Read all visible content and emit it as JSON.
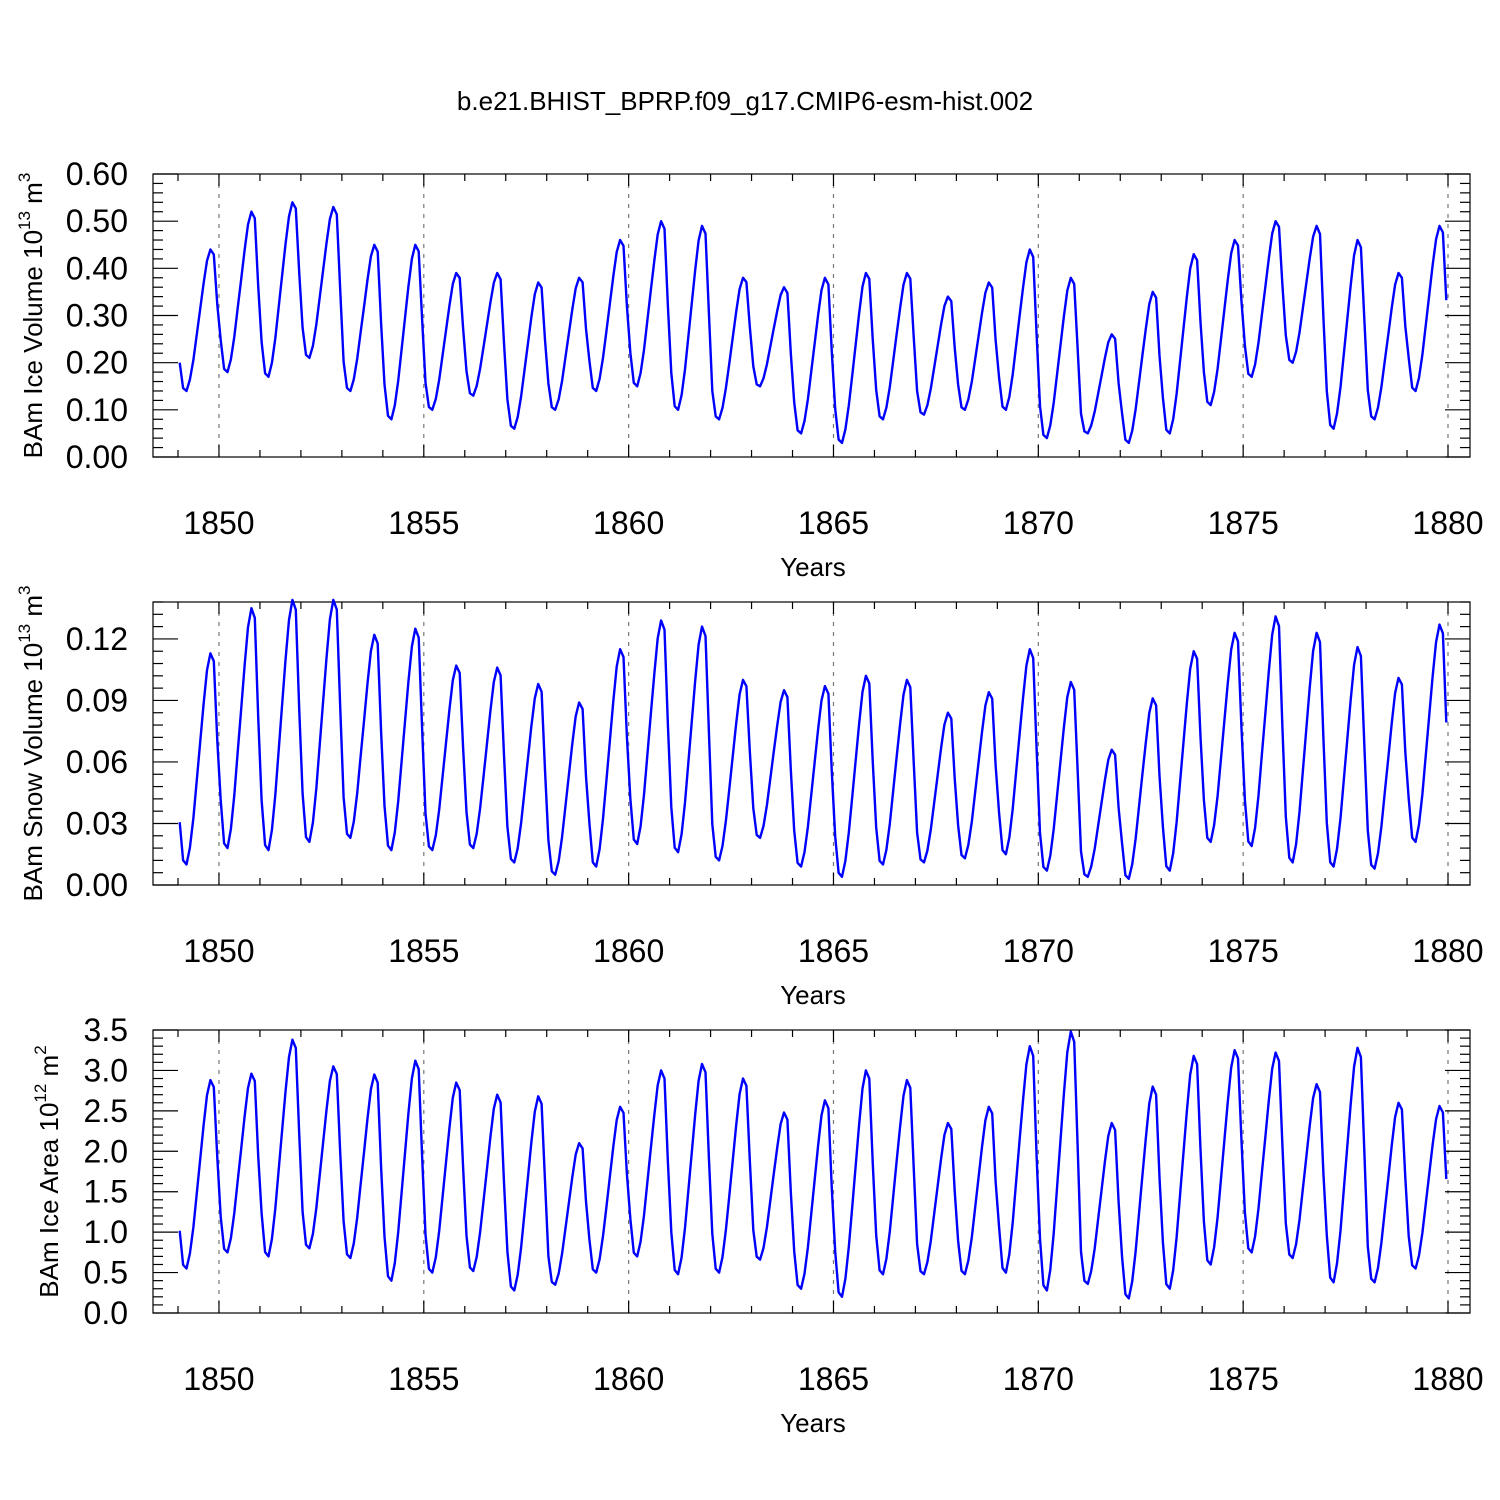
{
  "title": "b.e21.BHIST_BPRP.f09_g17.CMIP6-esm-hist.002",
  "line_color": "#0000ff",
  "chart_data": [
    {
      "type": "line",
      "ylabel_main": "BAm Ice Volume 10",
      "ylabel_exp": "13",
      "ylabel_unit": " m",
      "ylabel_unit_exp": "3",
      "xlabel": "Years",
      "xlim": [
        1849,
        1880
      ],
      "ylim": [
        0,
        0.6
      ],
      "y_ticks": [
        0,
        0.1,
        0.2,
        0.3,
        0.4,
        0.5,
        0.6
      ],
      "y_tick_labels": [
        "0.00",
        "0.10",
        "0.20",
        "0.30",
        "0.40",
        "0.50",
        "0.60"
      ],
      "x_ticks": [
        1850,
        1855,
        1860,
        1865,
        1870,
        1875,
        1880
      ],
      "x_tick_labels": [
        "1850",
        "1855",
        "1860",
        "1865",
        "1870",
        "1875",
        "1880"
      ],
      "grid_vertical_dashed": true,
      "annual_max": [
        0.44,
        0.52,
        0.54,
        0.53,
        0.45,
        0.45,
        0.39,
        0.39,
        0.37,
        0.38,
        0.46,
        0.5,
        0.49,
        0.38,
        0.36,
        0.38,
        0.39,
        0.39,
        0.34,
        0.37,
        0.44,
        0.38,
        0.26,
        0.35,
        0.43,
        0.46,
        0.5,
        0.49,
        0.46,
        0.39,
        0.49
      ],
      "annual_min": [
        0.14,
        0.18,
        0.17,
        0.21,
        0.14,
        0.08,
        0.1,
        0.13,
        0.06,
        0.1,
        0.14,
        0.15,
        0.1,
        0.08,
        0.15,
        0.05,
        0.03,
        0.08,
        0.09,
        0.1,
        0.1,
        0.04,
        0.05,
        0.03,
        0.05,
        0.11,
        0.17,
        0.2,
        0.06,
        0.08,
        0.14
      ]
    },
    {
      "type": "line",
      "ylabel_main": "BAm Snow Volume 10",
      "ylabel_exp": "13",
      "ylabel_unit": " m",
      "ylabel_unit_exp": "3",
      "xlabel": "Years",
      "xlim": [
        1849,
        1880
      ],
      "ylim": [
        0,
        0.138
      ],
      "y_ticks": [
        0,
        0.03,
        0.06,
        0.09,
        0.12
      ],
      "y_tick_labels": [
        "0.00",
        "0.03",
        "0.06",
        "0.09",
        "0.12"
      ],
      "x_ticks": [
        1850,
        1855,
        1860,
        1865,
        1870,
        1875,
        1880
      ],
      "x_tick_labels": [
        "1850",
        "1855",
        "1860",
        "1865",
        "1870",
        "1875",
        "1880"
      ],
      "grid_vertical_dashed": true,
      "annual_max": [
        0.113,
        0.135,
        0.139,
        0.139,
        0.122,
        0.125,
        0.107,
        0.106,
        0.098,
        0.089,
        0.115,
        0.129,
        0.126,
        0.1,
        0.095,
        0.097,
        0.102,
        0.1,
        0.084,
        0.094,
        0.115,
        0.099,
        0.066,
        0.091,
        0.114,
        0.123,
        0.131,
        0.123,
        0.116,
        0.101,
        0.127
      ],
      "annual_min": [
        0.01,
        0.018,
        0.017,
        0.021,
        0.023,
        0.017,
        0.017,
        0.018,
        0.011,
        0.005,
        0.009,
        0.02,
        0.016,
        0.012,
        0.023,
        0.009,
        0.004,
        0.01,
        0.011,
        0.013,
        0.015,
        0.007,
        0.004,
        0.003,
        0.007,
        0.021,
        0.019,
        0.011,
        0.009,
        0.008,
        0.021
      ]
    },
    {
      "type": "line",
      "ylabel_main": "BAm Ice Area 10",
      "ylabel_exp": "12",
      "ylabel_unit": " m",
      "ylabel_unit_exp": "2",
      "xlabel": "Years",
      "xlim": [
        1849,
        1880
      ],
      "ylim": [
        0,
        3.5
      ],
      "y_ticks": [
        0,
        0.5,
        1,
        1.5,
        2,
        2.5,
        3,
        3.5
      ],
      "y_tick_labels": [
        "0.0",
        "0.5",
        "1.0",
        "1.5",
        "2.0",
        "2.5",
        "3.0",
        "3.5"
      ],
      "x_ticks": [
        1850,
        1855,
        1860,
        1865,
        1870,
        1875,
        1880
      ],
      "x_tick_labels": [
        "1850",
        "1855",
        "1860",
        "1865",
        "1870",
        "1875",
        "1880"
      ],
      "grid_vertical_dashed": true,
      "annual_max": [
        2.88,
        2.96,
        3.38,
        3.05,
        2.95,
        3.12,
        2.85,
        2.7,
        2.68,
        2.1,
        2.55,
        3.0,
        3.08,
        2.9,
        2.48,
        2.63,
        3.0,
        2.88,
        2.35,
        2.55,
        3.3,
        3.48,
        2.35,
        2.8,
        3.18,
        3.25,
        3.22,
        2.83,
        3.28,
        2.6,
        2.56
      ],
      "annual_min": [
        0.55,
        0.75,
        0.7,
        0.8,
        0.68,
        0.4,
        0.5,
        0.52,
        0.28,
        0.35,
        0.5,
        0.7,
        0.48,
        0.5,
        0.66,
        0.3,
        0.2,
        0.48,
        0.48,
        0.48,
        0.5,
        0.28,
        0.36,
        0.18,
        0.3,
        0.6,
        0.75,
        0.68,
        0.38,
        0.38,
        0.55
      ]
    }
  ]
}
